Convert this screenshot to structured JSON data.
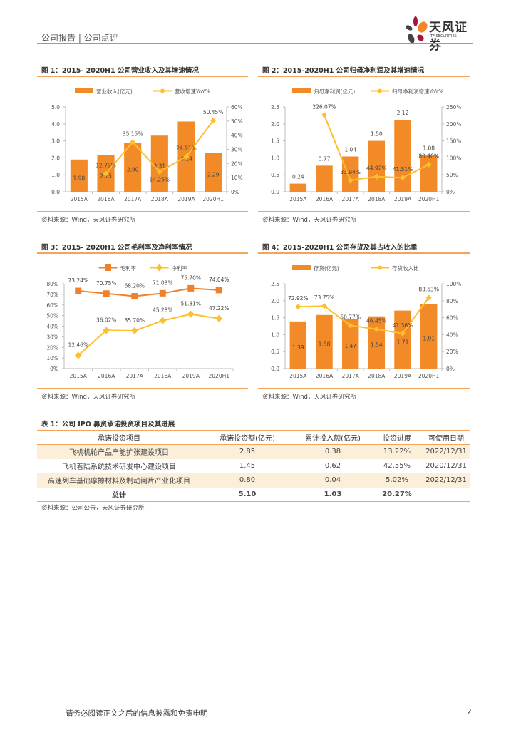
{
  "header": {
    "section": "公司报告 | 公司点评",
    "logo_cn": "天风证券",
    "logo_en": "TF SECURITIES"
  },
  "figures": [
    {
      "title": "图 1：2015- 2020H1 公司营业收入及其增速情况",
      "source": "资料来源：Wind，天风证券研究所"
    },
    {
      "title": "图 2：2015-2020H1 公司归母净利润及其增速情况",
      "source": "资料来源：Wind，天风证券研究所"
    },
    {
      "title": "图 3：2015- 2020H1 公司毛利率及净利率情况",
      "source": "资料来源：Wind，天风证券研究所"
    },
    {
      "title": "图 4：2015-2020H1 公司存货及其占收入的比重",
      "source": "资料来源：Wind，天风证券研究所"
    }
  ],
  "chart_data": [
    {
      "type": "bar+line",
      "categories": [
        "2015A",
        "2016A",
        "2017A",
        "2018A",
        "2019A",
        "2020H1"
      ],
      "bar": {
        "name": "营业收入(亿元)",
        "values": [
          1.9,
          2.15,
          2.9,
          3.31,
          4.14,
          2.29
        ],
        "labels": [
          "1.90",
          "2.15",
          "2.90",
          "3.31",
          "4.14",
          "2.29"
        ]
      },
      "line": {
        "name": "营收增速YoY%",
        "values": [
          null,
          12.79,
          35.15,
          14.25,
          24.91,
          50.45
        ],
        "labels": [
          "",
          "12.79%",
          "35.15%",
          "14.25%",
          "24.91%",
          "50.45%"
        ]
      },
      "ylim": [
        0,
        5
      ],
      "yticks": [
        "0.0",
        "1.0",
        "2.0",
        "3.0",
        "4.0",
        "5.0"
      ],
      "y2lim": [
        0,
        60
      ],
      "y2ticks": [
        "0%",
        "10%",
        "20%",
        "30%",
        "40%",
        "50%",
        "60%"
      ],
      "colors": {
        "bar": "#F28A28",
        "line": "#FDBF2D"
      }
    },
    {
      "type": "bar+line",
      "categories": [
        "2015A",
        "2016A",
        "2017A",
        "2018A",
        "2019A",
        "2020H1"
      ],
      "bar": {
        "name": "归母净利润(亿元)",
        "values": [
          0.24,
          0.77,
          1.04,
          1.5,
          2.12,
          1.08
        ],
        "labels": [
          "0.24",
          "0.77",
          "1.04",
          "1.50",
          "2.12",
          "1.08"
        ]
      },
      "line": {
        "name": "归母净利润增速YoY%",
        "values": [
          null,
          226.07,
          33.94,
          44.92,
          41.51,
          80.4
        ],
        "labels": [
          "",
          "226.07%",
          "33.94%",
          "44.92%",
          "41.51%",
          "80.40%"
        ]
      },
      "ylim": [
        0,
        2.5
      ],
      "yticks": [
        "0.0",
        "0.5",
        "1.0",
        "1.5",
        "2.0",
        "2.5"
      ],
      "y2lim": [
        0,
        250
      ],
      "y2ticks": [
        "0%",
        "50%",
        "100%",
        "150%",
        "200%",
        "250%"
      ],
      "colors": {
        "bar": "#F28A28",
        "line": "#FDBF2D"
      }
    },
    {
      "type": "line",
      "categories": [
        "2015A",
        "2016A",
        "2017A",
        "2018A",
        "2019A",
        "2020H1"
      ],
      "series": [
        {
          "name": "毛利率",
          "values": [
            73.24,
            70.75,
            68.2,
            71.03,
            75.7,
            74.04
          ],
          "labels": [
            "73.24%",
            "70.75%",
            "68.20%",
            "71.03%",
            "75.70%",
            "74.04%"
          ],
          "color": "#F0812A",
          "marker": "square"
        },
        {
          "name": "净利率",
          "values": [
            12.46,
            36.02,
            35.7,
            45.28,
            51.31,
            47.22
          ],
          "labels": [
            "12.46%",
            "36.02%",
            "35.70%",
            "45.28%",
            "51.31%",
            "47.22%"
          ],
          "color": "#FDBF2D",
          "marker": "diamond"
        }
      ],
      "ylim": [
        0,
        80
      ],
      "yticks": [
        "0%",
        "10%",
        "20%",
        "30%",
        "40%",
        "50%",
        "60%",
        "70%",
        "80%"
      ]
    },
    {
      "type": "bar+line",
      "categories": [
        "2015A",
        "2016A",
        "2017A",
        "2018A",
        "2019A",
        "2020H1"
      ],
      "bar": {
        "name": "存货(亿元)",
        "values": [
          1.39,
          1.58,
          1.47,
          1.54,
          1.71,
          1.91
        ],
        "labels": [
          "1.39",
          "1.58",
          "1.47",
          "1.54",
          "1.71",
          "1.91"
        ]
      },
      "line": {
        "name": "存货收入比",
        "values": [
          72.92,
          73.75,
          50.77,
          46.45,
          41.36,
          83.63
        ],
        "labels": [
          "72.92%",
          "73.75%",
          "50.77%",
          "46.45%",
          "41.36%",
          "83.63%"
        ]
      },
      "ylim": [
        0,
        2.5
      ],
      "yticks": [
        "0.0",
        "0.5",
        "1.0",
        "1.5",
        "2.0",
        "2.5"
      ],
      "y2lim": [
        0,
        100
      ],
      "y2ticks": [
        "0%",
        "20%",
        "40%",
        "60%",
        "80%",
        "100%"
      ],
      "colors": {
        "bar": "#F28A28",
        "line": "#FDBF2D"
      }
    }
  ],
  "table": {
    "title": "表 1：公司 IPO 募资承诺投资项目及其进展",
    "headers": [
      "承诺投资项目",
      "承诺投资额(亿元)",
      "累计投入额(亿元)",
      "投资进度",
      "可使用日期"
    ],
    "rows": [
      [
        "飞机机轮产品产能扩张建设项目",
        "2.85",
        "0.38",
        "13.22%",
        "2022/12/31"
      ],
      [
        "飞机着陆系统技术研发中心建设项目",
        "1.45",
        "0.62",
        "42.55%",
        "2020/12/31"
      ],
      [
        "高速列车基础摩擦材料及制动闸片产业化项目",
        "0.80",
        "0.04",
        "5.02%",
        "2022/12/31"
      ]
    ],
    "total": [
      "总计",
      "5.10",
      "1.03",
      "20.27%",
      ""
    ],
    "source": "资料来源：公司公告，天风证券研究所"
  },
  "footer": {
    "disclaimer": "请务必阅读正文之后的信息披露和免责申明",
    "page": "2"
  }
}
